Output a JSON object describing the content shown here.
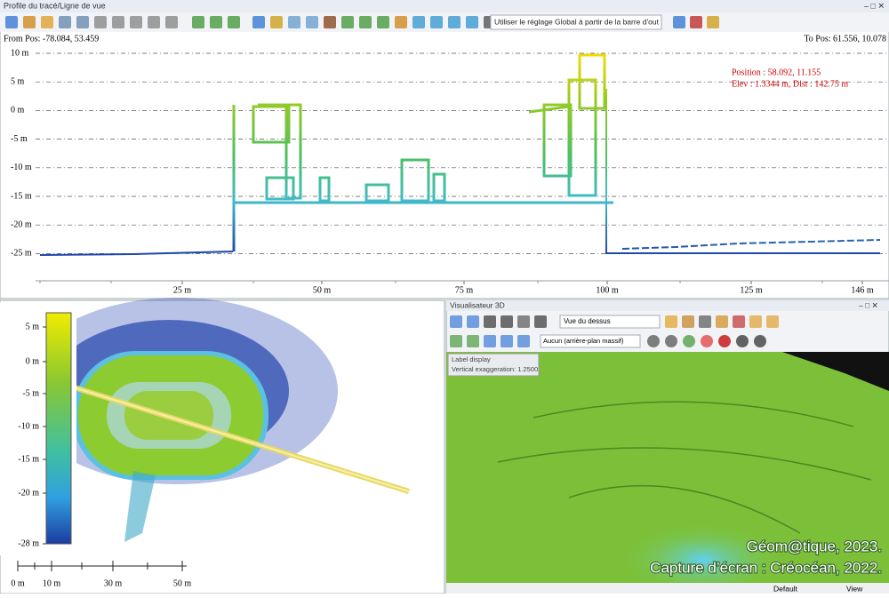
{
  "profile": {
    "title": "Profile du tracé/Ligne de vue",
    "setting": "Utiliser le réglage Global à partir de la barre d'out",
    "from_pos": "From Pos: -78.084, 53.459",
    "to_pos": "To Pos: 61.556, 10.078",
    "position": "Position : 58.092, 11.155",
    "elev": "Elev : 1.3344 m, Dist : 142.75 m",
    "y_labels": [
      "10 m",
      "5 m",
      "0 m",
      "-5 m",
      "-10 m",
      "-15 m",
      "-20 m",
      "-25 m"
    ],
    "x_labels": [
      "25 m",
      "50 m",
      "75 m",
      "100 m",
      "125 m",
      "146 m"
    ]
  },
  "map": {
    "legend_labels": [
      "5 m",
      "0 m",
      "-5 m",
      "-10 m",
      "-15 m",
      "-20 m",
      "-28 m"
    ],
    "scale_labels": [
      "0 m",
      "10 m",
      "30 m",
      "50 m"
    ]
  },
  "viewer": {
    "title": "Visualisateur 3D",
    "view": "Vue du dessus",
    "background": "Aucun (arrière-plan massif)",
    "label_display": "Label display",
    "exaggeration": "Vertical exaggeration: 1.2500",
    "status": [
      "Default",
      "View"
    ]
  },
  "credits": [
    "Géom@tique, 2023.",
    "Capture d’écran : Créocéan, 2022."
  ]
}
